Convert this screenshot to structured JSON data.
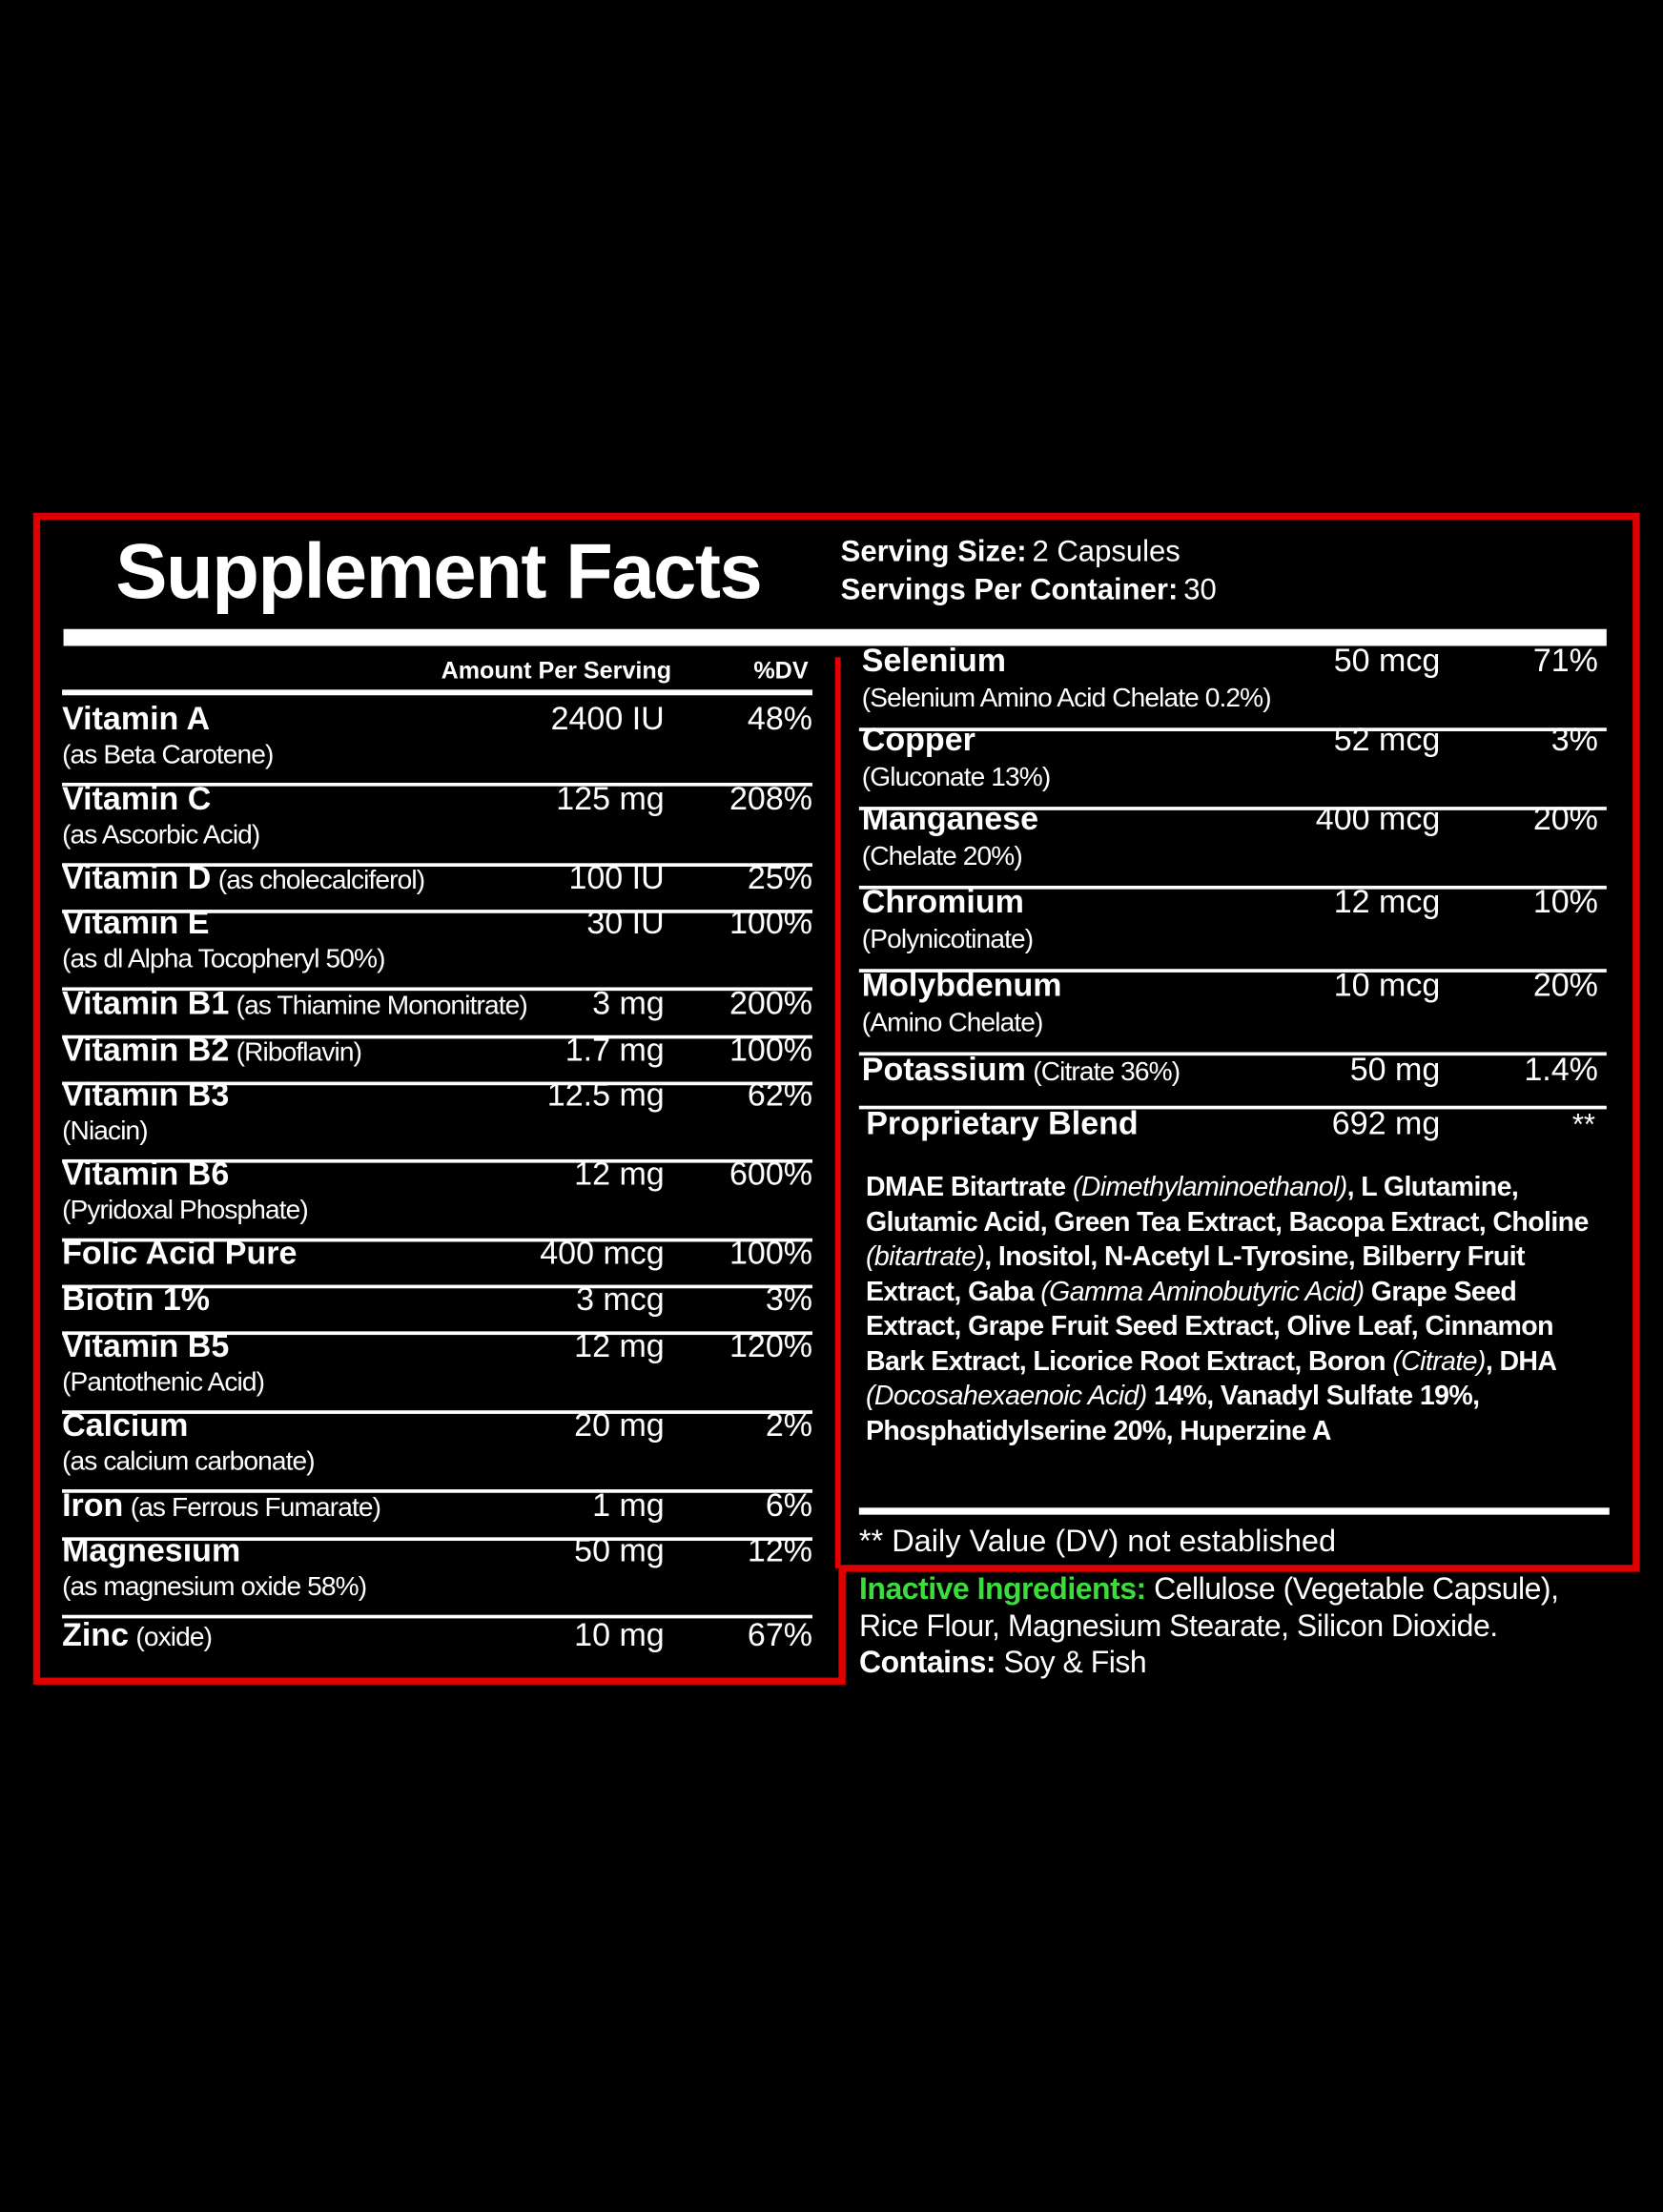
{
  "header": {
    "title": "Supplement Facts",
    "serving_size": {
      "label": "Serving Size:",
      "value": "2 Capsules"
    },
    "servings_per_container": {
      "label": "Servings Per Container:",
      "value": "30"
    }
  },
  "columns": {
    "amount": "Amount Per Serving",
    "dv": "%DV"
  },
  "left_rows": [
    {
      "name": "Vitamin A",
      "note": "(as Beta Carotene)",
      "amount": "2400 IU",
      "dv": "48%"
    },
    {
      "name": "Vitamin C",
      "note": "(as Ascorbic Acid)",
      "amount": "125 mg",
      "dv": "208%"
    },
    {
      "name": "Vitamin D",
      "note": "(as cholecalciferol)",
      "amount": "100 IU",
      "dv": "25%"
    },
    {
      "name": "Vitamin E",
      "note": "(as dl Alpha Tocopheryl 50%)",
      "amount": "30 IU",
      "dv": "100%"
    },
    {
      "name": "Vitamin B1",
      "note": "(as Thiamine Mononitrate)",
      "amount": "3 mg",
      "dv": "200%"
    },
    {
      "name": "Vitamin B2",
      "note": "(Riboflavin)",
      "amount": "1.7 mg",
      "dv": "100%"
    },
    {
      "name": "Vitamin B3",
      "note": "(Niacin)",
      "amount": "12.5 mg",
      "dv": "62%"
    },
    {
      "name": "Vitamin B6",
      "note": "(Pyridoxal Phosphate)",
      "amount": "12 mg",
      "dv": "600%"
    },
    {
      "name": "Folic Acid Pure",
      "amount": "400 mcg",
      "dv": "100%"
    },
    {
      "name": "Biotin 1%",
      "amount": "3 mcg",
      "dv": "3%"
    },
    {
      "name": "Vitamin B5",
      "note": "(Pantothenic Acid)",
      "amount": "12 mg",
      "dv": "120%"
    },
    {
      "name": "Calcium",
      "note": "(as calcium carbonate)",
      "amount": "20 mg",
      "dv": "2%"
    },
    {
      "name": "Iron",
      "note": "(as Ferrous Fumarate)",
      "amount": "1 mg",
      "dv": "6%"
    },
    {
      "name": "Magnesium",
      "note": "(as magnesium oxide 58%)",
      "amount": "50 mg",
      "dv": "12%"
    },
    {
      "name": "Zinc",
      "note": "(oxide)",
      "amount": "10 mg",
      "dv": "67%"
    }
  ],
  "right_rows": [
    {
      "name": "Selenium",
      "note": "(Selenium Amino Acid Chelate 0.2%)",
      "amount": "50 mcg",
      "dv": "71%"
    },
    {
      "name": "Copper",
      "note": "(Gluconate 13%)",
      "amount": "52 mcg",
      "dv": "3%"
    },
    {
      "name": "Manganese",
      "note": "(Chelate 20%)",
      "amount": "400 mcg",
      "dv": "20%"
    },
    {
      "name": "Chromium",
      "note": "(Polynicotinate)",
      "amount": "12 mcg",
      "dv": "10%"
    },
    {
      "name": "Molybdenum",
      "note": "(Amino Chelate)",
      "amount": "10 mcg",
      "dv": "20%"
    },
    {
      "name": "Potassium",
      "note": "(Citrate 36%)",
      "amount": "50 mg",
      "dv": "1.4%"
    }
  ],
  "blend": {
    "name": "Proprietary Blend",
    "amount": "692 mg",
    "dv": "**",
    "segments": [
      {
        "text": "DMAE Bitartrate ",
        "style": "bold"
      },
      {
        "text": "(Dimethylaminoethanol)",
        "style": "italic"
      },
      {
        "text": ", L Glutamine, Glutamic Acid, Green Tea Extract, Bacopa Extract, Choline ",
        "style": "bold"
      },
      {
        "text": "(bitartrate)",
        "style": "italic"
      },
      {
        "text": ", Inositol, N-Acetyl L-Tyrosine, Bilberry Fruit Extract, Gaba ",
        "style": "bold"
      },
      {
        "text": "(Gamma Aminobutyric Acid)",
        "style": "italic"
      },
      {
        "text": " Grape Seed Extract, Grape Fruit Seed Extract, Olive Leaf, Cinnamon Bark Extract, Licorice Root Extract, Boron ",
        "style": "bold"
      },
      {
        "text": "(Citrate)",
        "style": "italic"
      },
      {
        "text": ", DHA ",
        "style": "bold"
      },
      {
        "text": "(Docosahexaenoic Acid)",
        "style": "italic"
      },
      {
        "text": " 14%, Vanadyl Sulfate 19%, Phosphatidylserine 20%, Huperzine A",
        "style": "bold"
      }
    ]
  },
  "footnote": "** Daily Value (DV) not established",
  "inactive": {
    "label": "Inactive Ingredients:",
    "text": "Cellulose (Vegetable Capsule), Rice Flour, Magnesium Stearate, Silicon Dioxide.",
    "contains_label": "Contains:",
    "contains": "Soy & Fish"
  }
}
